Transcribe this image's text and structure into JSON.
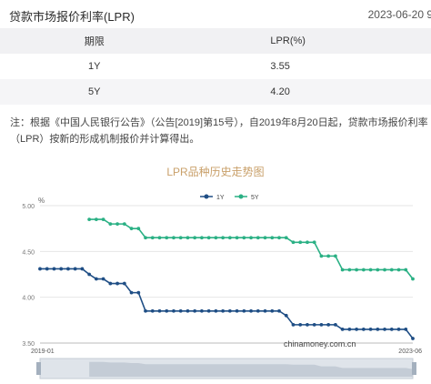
{
  "header": {
    "title": "贷款市场报价利率(LPR)",
    "date": "2023-06-20 9"
  },
  "table": {
    "columns": [
      "期限",
      "LPR(%)"
    ],
    "rows": [
      {
        "term": "1Y",
        "rate": "3.55"
      },
      {
        "term": "5Y",
        "rate": "4.20"
      }
    ]
  },
  "note": "注：根据《中国人民银行公告》（公告[2019]第15号），自2019年8月20日起，贷款市场报价利率（LPR）按新的形成机制报价并计算得出。",
  "chart_title": "LPR品种历史走势图",
  "watermark": "chinamoney.com.cn",
  "colors": {
    "series_1y": "#1f4e85",
    "series_5y": "#2ab084",
    "title": "#c9a06a",
    "grid": "#e6e6e6"
  },
  "chart_data": {
    "type": "line",
    "title": "LPR品种历史走势图",
    "ylabel": "%",
    "ylim": [
      3.5,
      5.0
    ],
    "yticks": [
      "3.50",
      "4.00",
      "4.50",
      "5.00"
    ],
    "x_tick_labels": [
      "2019-01",
      "2023-06"
    ],
    "xlim": [
      "2019-01",
      "2023-06"
    ],
    "grid": true,
    "legend": "top-center",
    "series": [
      {
        "name": "1Y",
        "x": [
          "2019-01",
          "2019-02",
          "2019-03",
          "2019-04",
          "2019-05",
          "2019-06",
          "2019-07",
          "2019-08",
          "2019-09",
          "2019-10",
          "2019-11",
          "2019-12",
          "2020-01",
          "2020-02",
          "2020-03",
          "2020-04",
          "2020-05",
          "2020-06",
          "2020-07",
          "2020-08",
          "2020-09",
          "2020-10",
          "2020-11",
          "2020-12",
          "2021-01",
          "2021-02",
          "2021-03",
          "2021-04",
          "2021-05",
          "2021-06",
          "2021-07",
          "2021-08",
          "2021-09",
          "2021-10",
          "2021-11",
          "2021-12",
          "2022-01",
          "2022-02",
          "2022-03",
          "2022-04",
          "2022-05",
          "2022-06",
          "2022-07",
          "2022-08",
          "2022-09",
          "2022-10",
          "2022-11",
          "2022-12",
          "2023-01",
          "2023-02",
          "2023-03",
          "2023-04",
          "2023-05",
          "2023-06"
        ],
        "values": [
          4.31,
          4.31,
          4.31,
          4.31,
          4.31,
          4.31,
          4.31,
          4.25,
          4.2,
          4.2,
          4.15,
          4.15,
          4.15,
          4.05,
          4.05,
          3.85,
          3.85,
          3.85,
          3.85,
          3.85,
          3.85,
          3.85,
          3.85,
          3.85,
          3.85,
          3.85,
          3.85,
          3.85,
          3.85,
          3.85,
          3.85,
          3.85,
          3.85,
          3.85,
          3.85,
          3.8,
          3.7,
          3.7,
          3.7,
          3.7,
          3.7,
          3.7,
          3.7,
          3.65,
          3.65,
          3.65,
          3.65,
          3.65,
          3.65,
          3.65,
          3.65,
          3.65,
          3.65,
          3.55
        ]
      },
      {
        "name": "5Y",
        "x": [
          "2019-08",
          "2019-09",
          "2019-10",
          "2019-11",
          "2019-12",
          "2020-01",
          "2020-02",
          "2020-03",
          "2020-04",
          "2020-05",
          "2020-06",
          "2020-07",
          "2020-08",
          "2020-09",
          "2020-10",
          "2020-11",
          "2020-12",
          "2021-01",
          "2021-02",
          "2021-03",
          "2021-04",
          "2021-05",
          "2021-06",
          "2021-07",
          "2021-08",
          "2021-09",
          "2021-10",
          "2021-11",
          "2021-12",
          "2022-01",
          "2022-02",
          "2022-03",
          "2022-04",
          "2022-05",
          "2022-06",
          "2022-07",
          "2022-08",
          "2022-09",
          "2022-10",
          "2022-11",
          "2022-12",
          "2023-01",
          "2023-02",
          "2023-03",
          "2023-04",
          "2023-05",
          "2023-06"
        ],
        "values": [
          4.85,
          4.85,
          4.85,
          4.8,
          4.8,
          4.8,
          4.75,
          4.75,
          4.65,
          4.65,
          4.65,
          4.65,
          4.65,
          4.65,
          4.65,
          4.65,
          4.65,
          4.65,
          4.65,
          4.65,
          4.65,
          4.65,
          4.65,
          4.65,
          4.65,
          4.65,
          4.65,
          4.65,
          4.65,
          4.6,
          4.6,
          4.6,
          4.6,
          4.45,
          4.45,
          4.45,
          4.3,
          4.3,
          4.3,
          4.3,
          4.3,
          4.3,
          4.3,
          4.3,
          4.3,
          4.3,
          4.2
        ]
      }
    ]
  }
}
